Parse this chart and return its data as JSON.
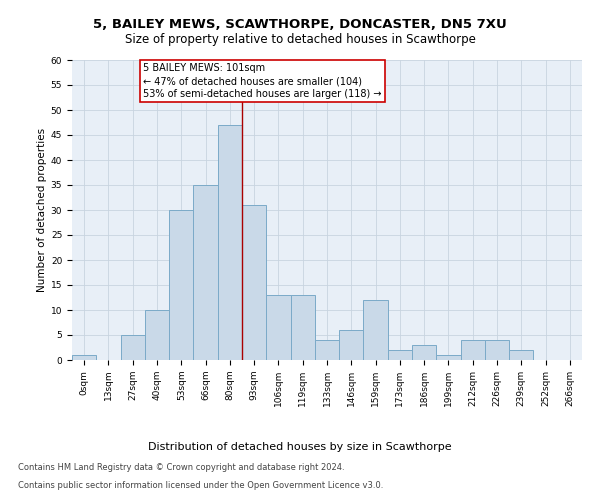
{
  "title1": "5, BAILEY MEWS, SCAWTHORPE, DONCASTER, DN5 7XU",
  "title2": "Size of property relative to detached houses in Scawthorpe",
  "xlabel": "Distribution of detached houses by size in Scawthorpe",
  "ylabel": "Number of detached properties",
  "bar_labels": [
    "0sqm",
    "13sqm",
    "27sqm",
    "40sqm",
    "53sqm",
    "66sqm",
    "80sqm",
    "93sqm",
    "106sqm",
    "119sqm",
    "133sqm",
    "146sqm",
    "159sqm",
    "173sqm",
    "186sqm",
    "199sqm",
    "212sqm",
    "226sqm",
    "239sqm",
    "252sqm",
    "266sqm"
  ],
  "bar_values": [
    1,
    0,
    5,
    10,
    30,
    35,
    47,
    31,
    13,
    13,
    4,
    6,
    12,
    2,
    3,
    1,
    4,
    4,
    2,
    0,
    0
  ],
  "bar_color": "#c9d9e8",
  "bar_edge_color": "#7baac8",
  "vline_x": 7.0,
  "vline_color": "#aa0000",
  "annotation_text": "5 BAILEY MEWS: 101sqm\n← 47% of detached houses are smaller (104)\n53% of semi-detached houses are larger (118) →",
  "annotation_box_color": "#ffffff",
  "annotation_box_edge_color": "#cc0000",
  "ylim": [
    0,
    60
  ],
  "yticks": [
    0,
    5,
    10,
    15,
    20,
    25,
    30,
    35,
    40,
    45,
    50,
    55,
    60
  ],
  "grid_color": "#c8d4e0",
  "bg_color": "#e8eff7",
  "footer1": "Contains HM Land Registry data © Crown copyright and database right 2024.",
  "footer2": "Contains public sector information licensed under the Open Government Licence v3.0.",
  "title1_fontsize": 9.5,
  "title2_fontsize": 8.5,
  "xlabel_fontsize": 8,
  "ylabel_fontsize": 7.5,
  "tick_fontsize": 6.5,
  "annotation_fontsize": 7,
  "footer_fontsize": 6
}
